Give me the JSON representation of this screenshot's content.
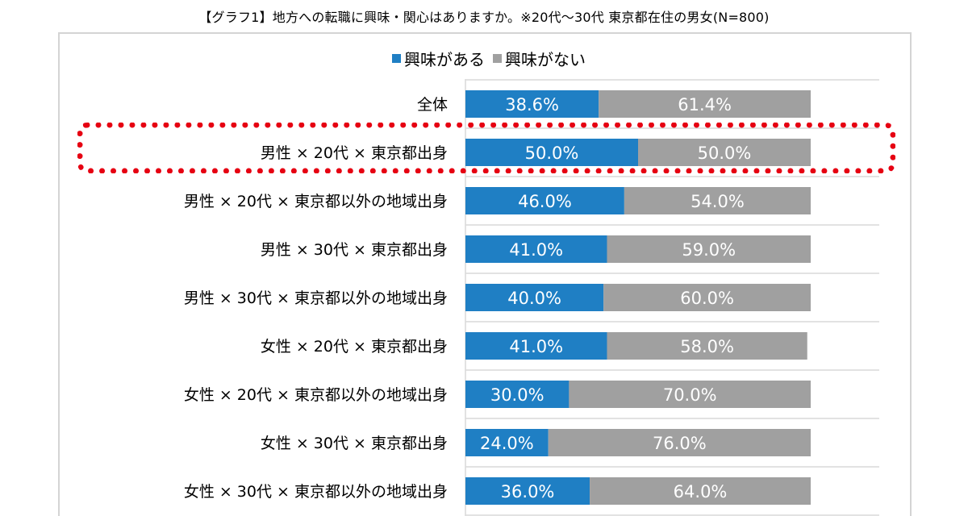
{
  "title": "【グラフ1】地方への転職に興味・関心はありますか。※20代〜30代 東京都在住の男女(N=800)",
  "chart_data": {
    "type": "bar",
    "orientation": "horizontal",
    "stacked": true,
    "percent": true,
    "categories": [
      "全体",
      "男性 × 20代 × 東京都出身",
      "男性 × 20代 × 東京都以外の地域出身",
      "男性 × 30代 × 東京都出身",
      "男性 × 30代 × 東京都以外の地域出身",
      "女性 × 20代 × 東京都出身",
      "女性 × 20代 × 東京都以外の地域出身",
      "女性 × 30代 × 東京都出身",
      "女性 × 30代 × 東京都以外の地域出身"
    ],
    "series": [
      {
        "name": "興味がある",
        "values": [
          38.6,
          50.0,
          46.0,
          41.0,
          40.0,
          41.0,
          30.0,
          24.0,
          36.0
        ],
        "color": "#1f7fc4"
      },
      {
        "name": "興味がない",
        "values": [
          61.4,
          50.0,
          54.0,
          59.0,
          60.0,
          58.0,
          70.0,
          76.0,
          64.0
        ],
        "color": "#a0a0a0"
      }
    ],
    "data_labels": [
      [
        "38.6%",
        "50.0%",
        "46.0%",
        "41.0%",
        "40.0%",
        "41.0%",
        "30.0%",
        "24.0%",
        "36.0%"
      ],
      [
        "61.4%",
        "50.0%",
        "54.0%",
        "59.0%",
        "60.0%",
        "58.0%",
        "70.0%",
        "76.0%",
        "64.0%"
      ]
    ],
    "xlim": [
      0,
      100
    ],
    "legend_position": "top",
    "grid": true,
    "highlight_category": "男性 × 20代 × 東京都出身",
    "highlight_color": "#e60012"
  }
}
